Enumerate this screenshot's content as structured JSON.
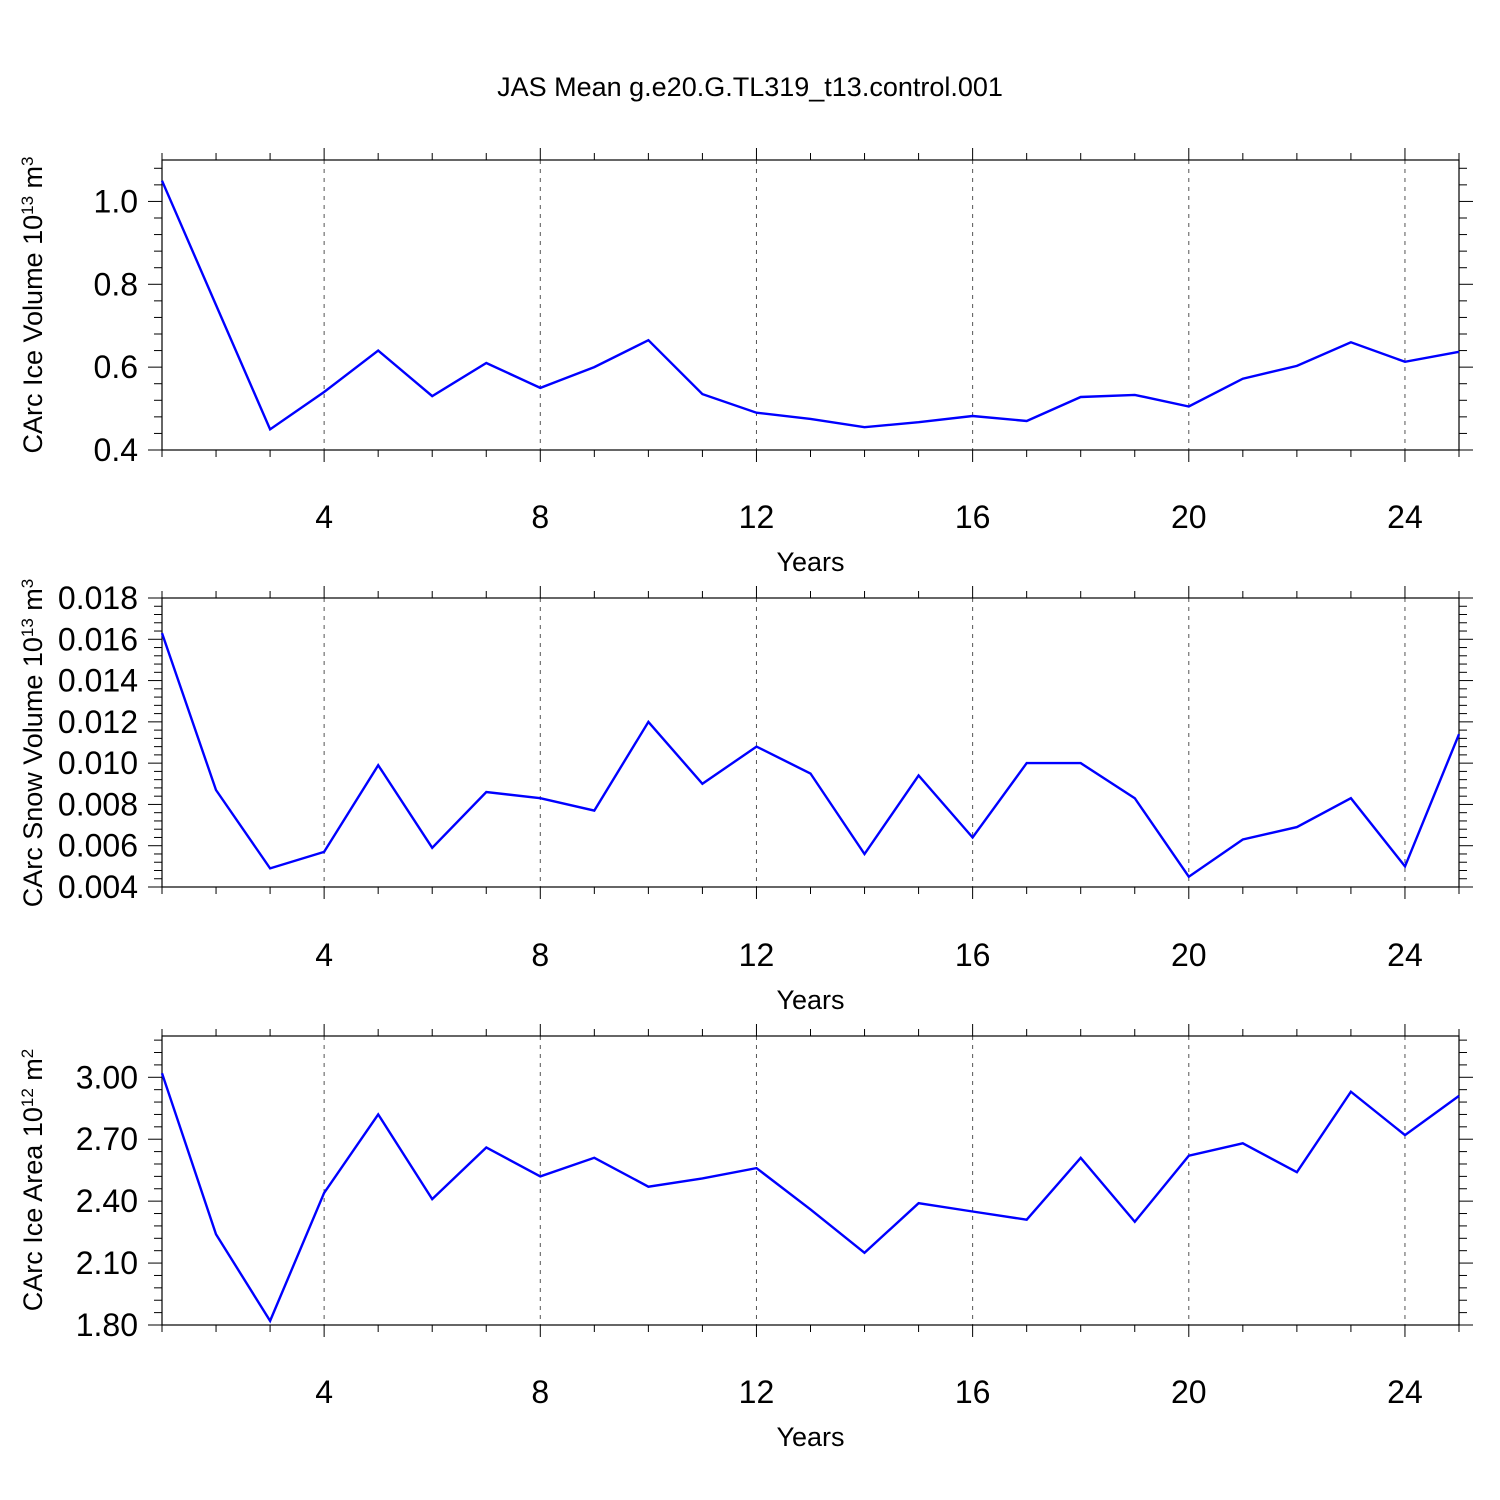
{
  "figure": {
    "title": "JAS Mean g.e20.G.TL319_t13.control.001",
    "line_color": "#0000ff"
  },
  "chart_data": [
    {
      "type": "line",
      "title": "",
      "xlabel": "Years",
      "ylabel": "CArc Ice Volume 10",
      "ylabel_exp": "13",
      "ylabel_unit": " m",
      "ylabel_unit_exp": "3",
      "xlim": [
        1,
        25
      ],
      "ylim": [
        0.4,
        1.1
      ],
      "xticks": [
        4,
        8,
        12,
        16,
        20,
        24
      ],
      "yticks": [
        0.4,
        0.6,
        0.8,
        1.0
      ],
      "ytick_labels": [
        "0.4",
        "0.6",
        "0.8",
        "1.0"
      ],
      "x": [
        1,
        2,
        3,
        4,
        5,
        6,
        7,
        8,
        9,
        10,
        11,
        12,
        13,
        14,
        15,
        16,
        17,
        18,
        19,
        20,
        21,
        22,
        23,
        24,
        25
      ],
      "values": [
        1.05,
        0.75,
        0.45,
        0.54,
        0.64,
        0.53,
        0.61,
        0.55,
        0.6,
        0.665,
        0.535,
        0.49,
        0.475,
        0.455,
        0.467,
        0.482,
        0.47,
        0.528,
        0.533,
        0.505,
        0.572,
        0.603,
        0.66,
        0.613,
        0.637
      ]
    },
    {
      "type": "line",
      "title": "",
      "xlabel": "Years",
      "ylabel": "CArc Snow Volume 10",
      "ylabel_exp": "13",
      "ylabel_unit": " m",
      "ylabel_unit_exp": "3",
      "xlim": [
        1,
        25
      ],
      "ylim": [
        0.004,
        0.018
      ],
      "xticks": [
        4,
        8,
        12,
        16,
        20,
        24
      ],
      "yticks": [
        0.004,
        0.006,
        0.008,
        0.01,
        0.012,
        0.014,
        0.016,
        0.018
      ],
      "ytick_labels": [
        "0.004",
        "0.006",
        "0.008",
        "0.010",
        "0.012",
        "0.014",
        "0.016",
        "0.018"
      ],
      "x": [
        1,
        2,
        3,
        4,
        5,
        6,
        7,
        8,
        9,
        10,
        11,
        12,
        13,
        14,
        15,
        16,
        17,
        18,
        19,
        20,
        21,
        22,
        23,
        24,
        25
      ],
      "values": [
        0.0163,
        0.0087,
        0.0049,
        0.0057,
        0.0099,
        0.0059,
        0.0086,
        0.0083,
        0.0077,
        0.012,
        0.009,
        0.0108,
        0.0095,
        0.0056,
        0.0094,
        0.0064,
        0.01,
        0.01,
        0.0083,
        0.0045,
        0.0063,
        0.0069,
        0.0083,
        0.005,
        0.0114
      ]
    },
    {
      "type": "line",
      "title": "",
      "xlabel": "Years",
      "ylabel": "CArc Ice Area 10",
      "ylabel_exp": "12",
      "ylabel_unit": " m",
      "ylabel_unit_exp": "2",
      "xlim": [
        1,
        25
      ],
      "ylim": [
        1.8,
        3.2
      ],
      "xticks": [
        4,
        8,
        12,
        16,
        20,
        24
      ],
      "yticks": [
        1.8,
        2.1,
        2.4,
        2.7,
        3.0
      ],
      "ytick_labels": [
        "1.80",
        "2.10",
        "2.40",
        "2.70",
        "3.00"
      ],
      "x": [
        1,
        2,
        3,
        4,
        5,
        6,
        7,
        8,
        9,
        10,
        11,
        12,
        13,
        14,
        15,
        16,
        17,
        18,
        19,
        20,
        21,
        22,
        23,
        24,
        25
      ],
      "values": [
        3.02,
        2.24,
        1.82,
        2.44,
        2.82,
        2.41,
        2.66,
        2.52,
        2.61,
        2.47,
        2.51,
        2.56,
        2.36,
        2.15,
        2.39,
        2.35,
        2.31,
        2.61,
        2.3,
        2.62,
        2.68,
        2.54,
        2.93,
        2.72,
        2.91
      ]
    }
  ]
}
